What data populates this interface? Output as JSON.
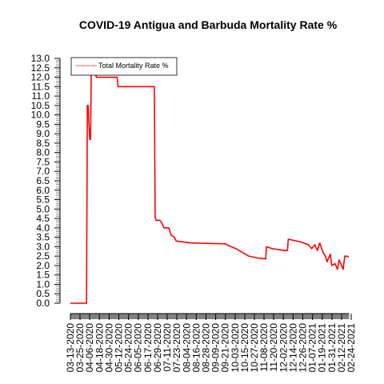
{
  "chart_data": {
    "type": "line",
    "title": "COVID-19 Antigua and Barbuda Mortality Rate %",
    "xlabel": "",
    "ylabel": "",
    "ylim": [
      0,
      13
    ],
    "yticks": [
      "0.0",
      "0.5",
      "1.0",
      "1.5",
      "2.0",
      "2.5",
      "3.0",
      "3.5",
      "4.0",
      "4.5",
      "5.0",
      "5.5",
      "6.0",
      "6.5",
      "7.0",
      "7.5",
      "8.0",
      "8.5",
      "9.0",
      "9.5",
      "10.0",
      "10.5",
      "11.0",
      "11.5",
      "12.0",
      "12.5",
      "13.0"
    ],
    "xticks": [
      "03-13-2020",
      "03-25-2020",
      "04-06-2020",
      "04-18-2020",
      "04-30-2020",
      "05-12-2020",
      "05-24-2020",
      "06-05-2020",
      "06-17-2020",
      "06-29-2020",
      "07-11-2020",
      "07-23-2020",
      "08-04-2020",
      "08-16-2020",
      "08-28-2020",
      "09-09-2020",
      "09-21-2020",
      "10-03-2020",
      "10-15-2020",
      "10-27-2020",
      "11-08-2020",
      "11-20-2020",
      "12-02-2020",
      "12-14-2020",
      "12-26-2020",
      "01-07-2021",
      "01-19-2021",
      "01-31-2021",
      "02-12-2021",
      "02-24-2021"
    ],
    "legend": {
      "position": "top-left",
      "entries": [
        "Total Mortality Rate %"
      ]
    },
    "series": [
      {
        "name": "Total Mortality Rate %",
        "color": "#ff0000",
        "points": [
          [
            "03-13-2020",
            0.0
          ],
          [
            "04-02-2020",
            0.0
          ],
          [
            "04-03-2020",
            10.5
          ],
          [
            "04-04-2020",
            10.5
          ],
          [
            "04-05-2020",
            9.5
          ],
          [
            "04-06-2020",
            8.7
          ],
          [
            "04-07-2020",
            8.7
          ],
          [
            "04-08-2020",
            13.0
          ],
          [
            "04-09-2020",
            13.0
          ],
          [
            "04-11-2020",
            12.5
          ],
          [
            "04-13-2020",
            12.5
          ],
          [
            "04-14-2020",
            12.0
          ],
          [
            "05-01-2020",
            12.0
          ],
          [
            "05-10-2020",
            12.0
          ],
          [
            "05-11-2020",
            11.5
          ],
          [
            "06-25-2020",
            11.5
          ],
          [
            "06-26-2020",
            4.6
          ],
          [
            "06-27-2020",
            4.4
          ],
          [
            "07-02-2020",
            4.4
          ],
          [
            "07-05-2020",
            4.2
          ],
          [
            "07-07-2020",
            4.0
          ],
          [
            "07-13-2020",
            4.0
          ],
          [
            "07-16-2020",
            3.6
          ],
          [
            "07-20-2020",
            3.5
          ],
          [
            "07-22-2020",
            3.3
          ],
          [
            "08-10-2020",
            3.2
          ],
          [
            "09-21-2020",
            3.15
          ],
          [
            "09-28-2020",
            3.0
          ],
          [
            "10-04-2020",
            2.9
          ],
          [
            "10-08-2020",
            2.8
          ],
          [
            "10-14-2020",
            2.65
          ],
          [
            "10-20-2020",
            2.5
          ],
          [
            "10-31-2020",
            2.4
          ],
          [
            "11-10-2020",
            2.35
          ],
          [
            "11-11-2020",
            3.0
          ],
          [
            "11-18-2020",
            2.9
          ],
          [
            "12-03-2020",
            2.8
          ],
          [
            "12-07-2020",
            2.8
          ],
          [
            "12-08-2020",
            3.4
          ],
          [
            "12-24-2020",
            3.25
          ],
          [
            "01-02-2021",
            3.1
          ],
          [
            "01-06-2021",
            2.9
          ],
          [
            "01-10-2021",
            3.1
          ],
          [
            "01-13-2021",
            2.8
          ],
          [
            "01-16-2021",
            3.2
          ],
          [
            "01-20-2021",
            2.7
          ],
          [
            "01-23-2021",
            2.5
          ],
          [
            "01-25-2021",
            2.2
          ],
          [
            "01-29-2021",
            2.6
          ],
          [
            "01-31-2021",
            2.0
          ],
          [
            "02-04-2021",
            2.1
          ],
          [
            "02-07-2021",
            1.8
          ],
          [
            "02-09-2021",
            2.3
          ],
          [
            "02-14-2021",
            1.8
          ],
          [
            "02-16-2021",
            2.5
          ],
          [
            "02-19-2021",
            2.5
          ],
          [
            "02-21-2021",
            2.45
          ]
        ]
      }
    ]
  }
}
